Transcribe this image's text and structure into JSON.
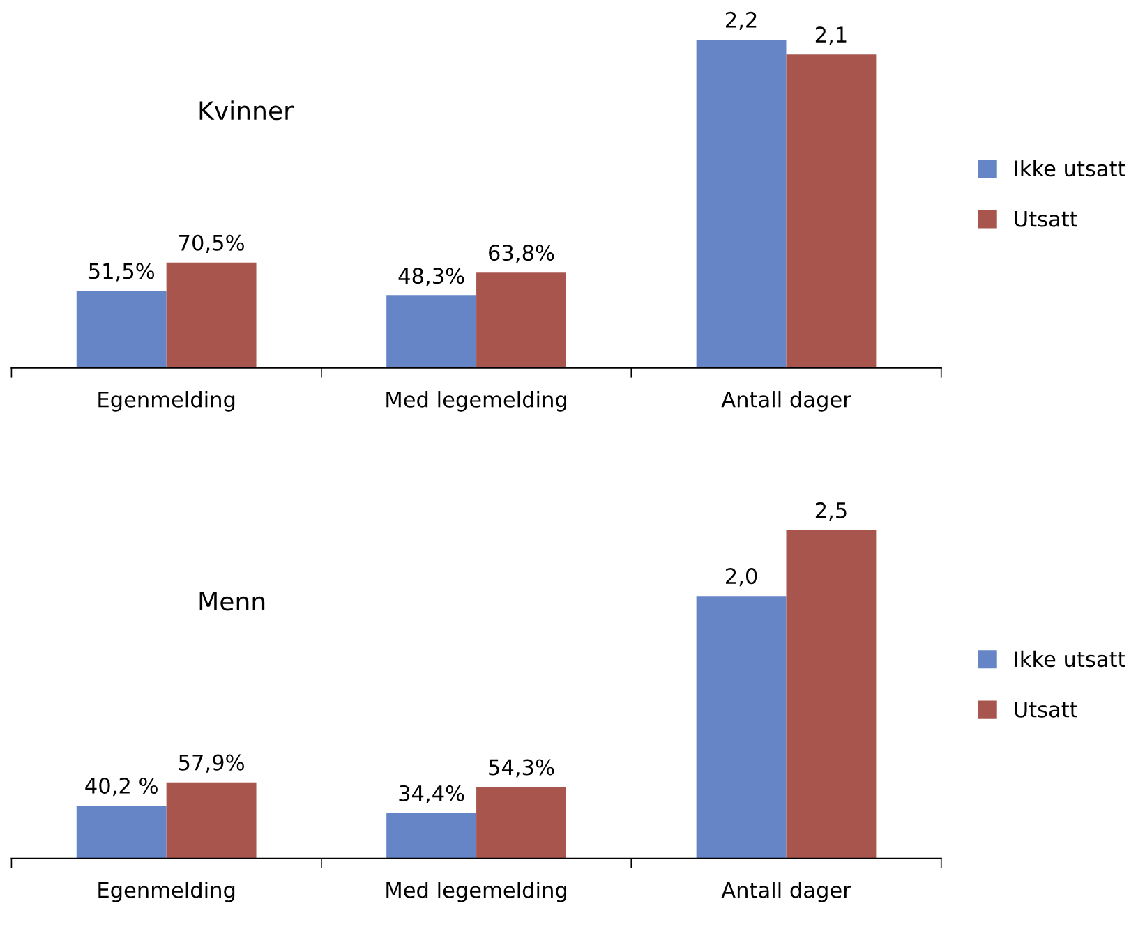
{
  "chart_data": [
    {
      "type": "bar",
      "title": "Kvinner",
      "categories": [
        "Egenmelding",
        "Med legemelding",
        "Antall dager"
      ],
      "legend": "right",
      "series": [
        {
          "name": "Ikke utsatt",
          "color": "#6585c6",
          "values": [
            0.515,
            0.483,
            2.2
          ],
          "value_labels": [
            "51,5%",
            "48,3%",
            "2,2"
          ]
        },
        {
          "name": "Utsatt",
          "color": "#a8554e",
          "values": [
            0.705,
            0.638,
            2.1
          ],
          "value_labels": [
            "70,5%",
            "63,8%",
            "2,1"
          ]
        }
      ]
    },
    {
      "type": "bar",
      "title": "Menn",
      "categories": [
        "Egenmelding",
        "Med legemelding",
        "Antall dager"
      ],
      "legend": "right",
      "series": [
        {
          "name": "Ikke utsatt",
          "color": "#6585c6",
          "values": [
            0.402,
            0.344,
            2.0
          ],
          "value_labels": [
            "40,2 %",
            "34,4%",
            "2,0"
          ]
        },
        {
          "name": "Utsatt",
          "color": "#a8554e",
          "values": [
            0.579,
            0.543,
            2.5
          ],
          "value_labels": [
            "57,9%",
            "54,3%",
            "2,5"
          ]
        }
      ]
    }
  ]
}
